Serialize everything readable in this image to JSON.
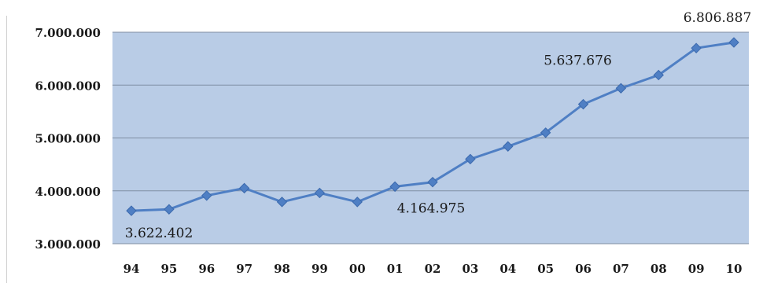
{
  "chart_data": {
    "type": "line",
    "title": "",
    "xlabel": "",
    "ylabel": "",
    "categories": [
      "94",
      "95",
      "96",
      "97",
      "98",
      "99",
      "00",
      "01",
      "02",
      "03",
      "04",
      "05",
      "06",
      "07",
      "08",
      "09",
      "10"
    ],
    "series": [
      {
        "values": [
          3622402,
          3650000,
          3910000,
          4050000,
          3790000,
          3960000,
          3790000,
          4080000,
          4164975,
          4600000,
          4840000,
          5100000,
          5637676,
          5940000,
          6190000,
          6700000,
          6806887
        ],
        "color": "#4f7fc4"
      }
    ],
    "yticks": [
      "3.000.000",
      "4.000.000",
      "5.000.000",
      "6.000.000",
      "7.000.000"
    ],
    "ytick_values": [
      3000000,
      4000000,
      5000000,
      6000000,
      7000000
    ],
    "ylim": [
      3000000,
      7000000
    ],
    "grid": true,
    "legend": "none",
    "annotations": [
      {
        "index": 0,
        "text": "3.622.402"
      },
      {
        "index": 8,
        "text": "4.164.975"
      },
      {
        "index": 12,
        "text": "5.637.676"
      },
      {
        "index": 16,
        "text": "6.806.887"
      }
    ],
    "colors": {
      "plot_background": "#b9cce6",
      "gridline": "#7f8ea3",
      "line": "#4f7fc4",
      "marker": "#4f7fc4",
      "text": "#1a1a1a"
    }
  }
}
